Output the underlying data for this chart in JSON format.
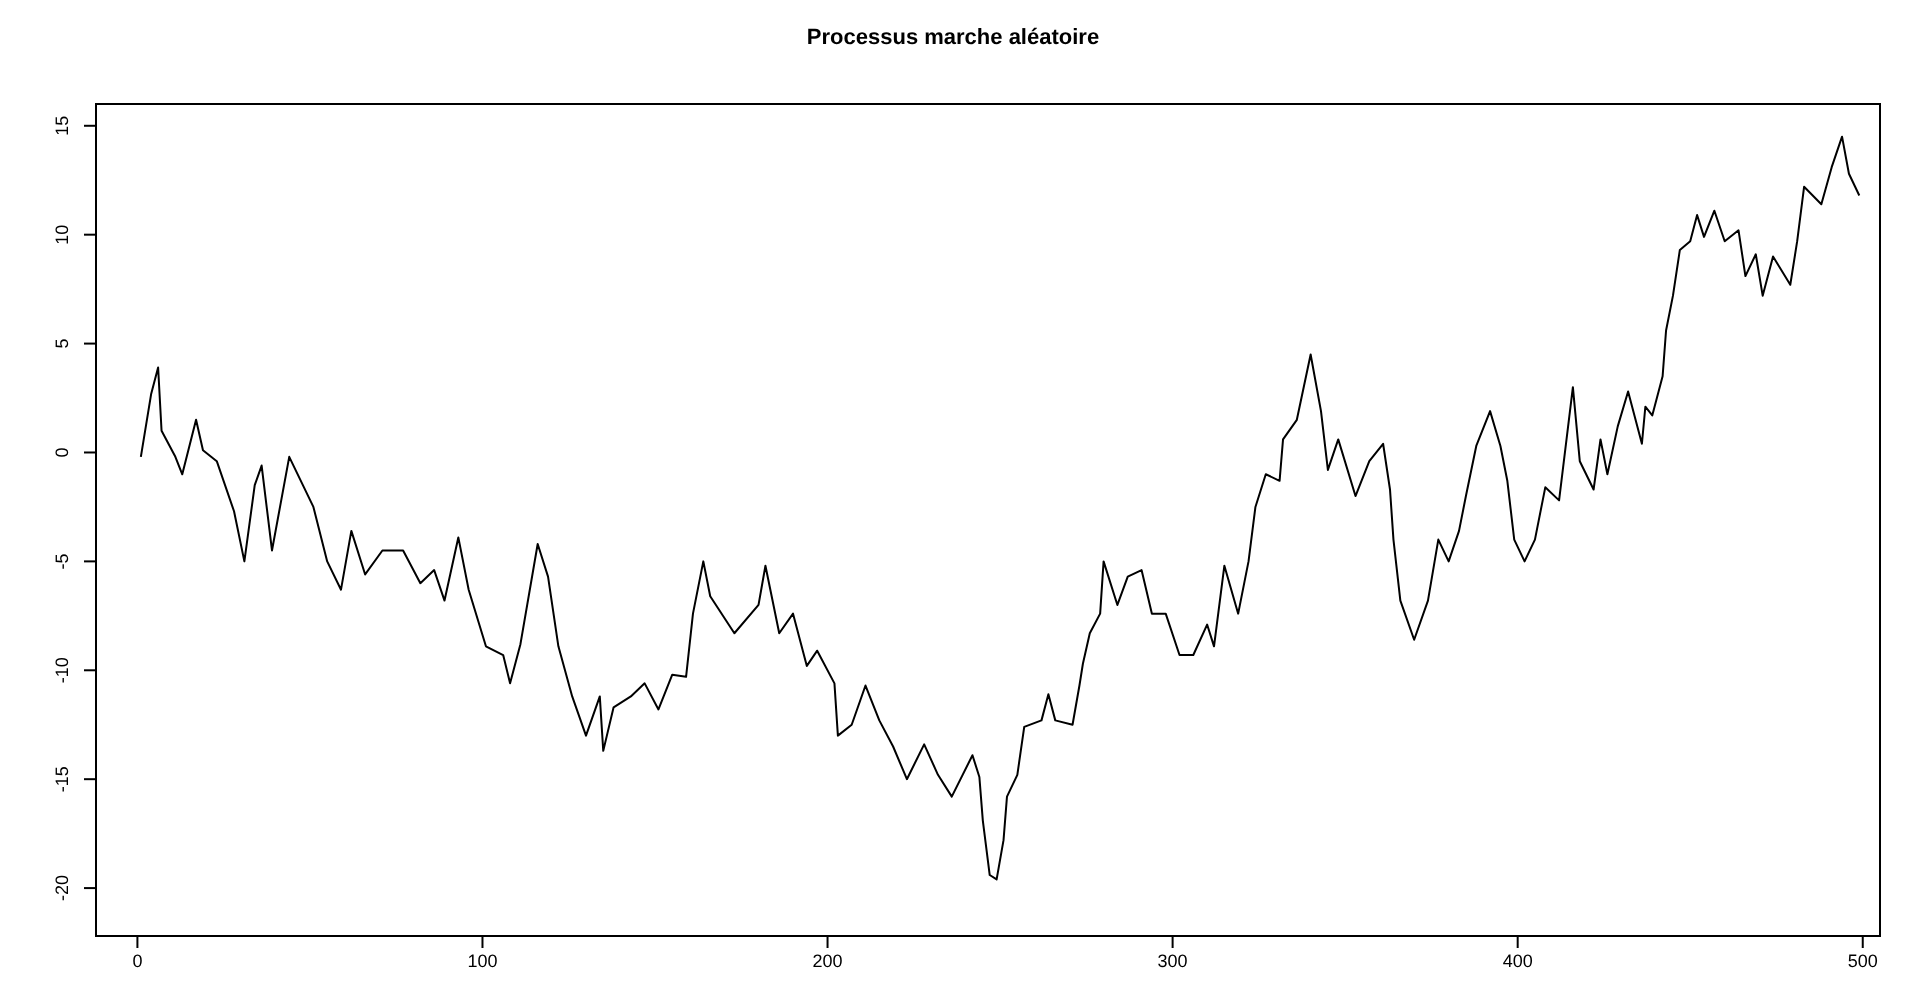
{
  "chart_data": {
    "type": "line",
    "title": "Processus marche aléatoire",
    "x": [
      1,
      4,
      6,
      7,
      11,
      13,
      17,
      19,
      23,
      28,
      31,
      34,
      36,
      39,
      44,
      51,
      55,
      59,
      62,
      66,
      71,
      77,
      82,
      86,
      89,
      93,
      96,
      101,
      106,
      108,
      111,
      116,
      119,
      122,
      126,
      130,
      134,
      135,
      138,
      143,
      147,
      151,
      155,
      159,
      161,
      164,
      166,
      173,
      180,
      182,
      186,
      190,
      194,
      197,
      202,
      203,
      207,
      211,
      215,
      219,
      223,
      228,
      232,
      236,
      242,
      244,
      245,
      247,
      249,
      251,
      252,
      255,
      257,
      262,
      264,
      266,
      271,
      273,
      274,
      276,
      279,
      280,
      284,
      287,
      291,
      294,
      298,
      302,
      306,
      310,
      312,
      315,
      319,
      322,
      324,
      327,
      331,
      332,
      336,
      340,
      343,
      345,
      348,
      353,
      357,
      361,
      363,
      364,
      366,
      370,
      374,
      377,
      380,
      383,
      385,
      388,
      392,
      395,
      397,
      399,
      402,
      405,
      408,
      412,
      416,
      418,
      422,
      424,
      426,
      429,
      432,
      436,
      437,
      439,
      442,
      443,
      445,
      447,
      450,
      452,
      454,
      457,
      460,
      464,
      466,
      469,
      471,
      474,
      479,
      481,
      483,
      488,
      491,
      494,
      496,
      499
    ],
    "series": [
      {
        "color": "#000000",
        "values": [
          -0.2,
          2.7,
          3.9,
          1,
          -0.2,
          -1,
          1.5,
          0.1,
          -0.4,
          -2.7,
          -5,
          -1.5,
          -0.6,
          -4.5,
          -0.2,
          -2.5,
          -5,
          -6.3,
          -3.6,
          -5.6,
          -4.5,
          -4.5,
          -6,
          -5.4,
          -6.8,
          -3.9,
          -6.3,
          -8.9,
          -9.3,
          -10.6,
          -8.8,
          -4.2,
          -5.7,
          -8.9,
          -11.2,
          -13,
          -11.2,
          -13.7,
          -11.7,
          -11.2,
          -10.6,
          -11.8,
          -10.2,
          -10.3,
          -7.4,
          -5,
          -6.6,
          -8.3,
          -7,
          -5.2,
          -8.3,
          -7.4,
          -9.8,
          -9.1,
          -10.6,
          -13,
          -12.5,
          -10.7,
          -12.3,
          -13.5,
          -15,
          -13.4,
          -14.8,
          -15.8,
          -13.9,
          -14.9,
          -16.9,
          -19.4,
          -19.6,
          -17.8,
          -15.8,
          -14.8,
          -12.6,
          -12.3,
          -11.1,
          -12.3,
          -12.5,
          -10.7,
          -9.7,
          -8.3,
          -7.4,
          -5,
          -7,
          -5.7,
          -5.4,
          -7.4,
          -7.4,
          -9.3,
          -9.3,
          -7.9,
          -8.9,
          -5.2,
          -7.4,
          -5,
          -2.5,
          -1,
          -1.3,
          0.6,
          1.5,
          4.5,
          1.9,
          -0.8,
          0.6,
          -2,
          -0.4,
          0.4,
          -1.7,
          -4,
          -6.8,
          -8.6,
          -6.8,
          -4,
          -5,
          -3.6,
          -2,
          0.3,
          1.9,
          0.3,
          -1.3,
          -4,
          -5,
          -4,
          -1.6,
          -2.2,
          3,
          -0.4,
          -1.7,
          0.6,
          -1,
          1.2,
          2.8,
          0.4,
          2.1,
          1.7,
          3.5,
          5.6,
          7.2,
          9.3,
          9.7,
          10.9,
          9.9,
          11.1,
          9.7,
          10.2,
          8.1,
          9.1,
          7.2,
          9,
          7.7,
          9.7,
          12.2,
          11.4,
          13.1,
          14.5,
          12.8,
          11.8
        ]
      }
    ],
    "xlim": [
      -12,
      505
    ],
    "xticks": [
      0,
      100,
      200,
      300,
      400,
      500
    ],
    "ylim": [
      -22.2,
      16
    ],
    "yticks": [
      -20,
      -15,
      -10,
      -5,
      0,
      5,
      10,
      15
    ],
    "grid": false,
    "line_style": "solid",
    "marker": "none"
  }
}
